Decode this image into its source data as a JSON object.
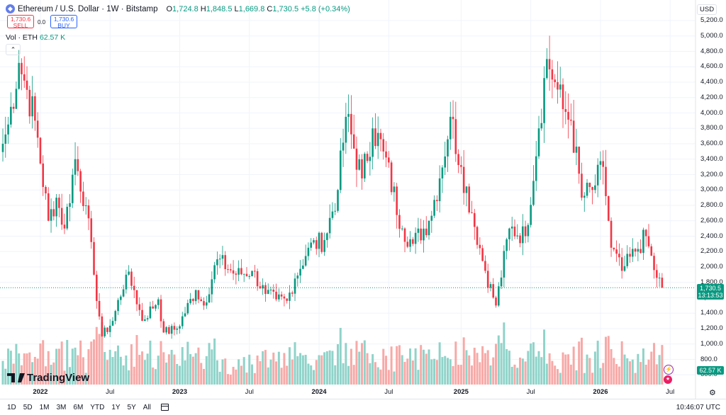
{
  "header": {
    "symbol_title": "Ethereum / U.S. Dollar · 1W · Bitstamp",
    "icon": "ethereum-icon",
    "open_label": "O",
    "open": "1,724.8",
    "high_label": "H",
    "high": "1,848.5",
    "low_label": "L",
    "low": "1,669.8",
    "close_label": "C",
    "close": "1,730.5",
    "change": "+5.8 (+0.34%)"
  },
  "trade": {
    "sell_price": "1,730.6",
    "sell_label": "SELL",
    "spread": "0.0",
    "buy_price": "1,730.6",
    "buy_label": "BUY"
  },
  "volume_legend": {
    "label": "Vol · ETH",
    "value": "62.57 K"
  },
  "axis": {
    "currency": "USD",
    "y_ticks": [
      "5,200.0",
      "5,000.0",
      "4,800.0",
      "4,600.0",
      "4,400.0",
      "4,200.0",
      "4,000.0",
      "3,800.0",
      "3,600.0",
      "3,400.0",
      "3,200.0",
      "3,000.0",
      "2,800.0",
      "2,600.0",
      "2,400.0",
      "2,200.0",
      "2,000.0",
      "1,800.0",
      "1,600.0",
      "1,400.0",
      "1,200.0",
      "1,000.0",
      "800.0",
      "600.0"
    ],
    "x_ticks": [
      "2022",
      "Jul",
      "2023",
      "Jul",
      "2024",
      "Jul",
      "2025",
      "Jul",
      "2026",
      "Jul"
    ]
  },
  "price_tag": {
    "price": "1,730.5",
    "countdown": "13:13:53"
  },
  "volume_tag": "62.57 K",
  "logo_text": "TradingView",
  "bottom": {
    "ranges": [
      "1D",
      "5D",
      "1M",
      "3M",
      "6M",
      "YTD",
      "1Y",
      "5Y",
      "All"
    ],
    "time": "10:46:07 UTC"
  },
  "colors": {
    "up": "#089981",
    "down": "#f23645",
    "vol_up": "#8fd3c9",
    "vol_down": "#f7a9a7"
  },
  "chart_data": {
    "type": "candlestick",
    "interval": "1W",
    "ylim": [
      550,
      5300
    ],
    "x_start": "2021-09-27",
    "anchors": [
      {
        "date": "2021-09-27",
        "close": 3600
      },
      {
        "date": "2021-10-11",
        "close": 3850
      },
      {
        "date": "2021-11-08",
        "close": 4650
      },
      {
        "date": "2021-11-29",
        "close": 4300
      },
      {
        "date": "2021-12-20",
        "close": 3900
      },
      {
        "date": "2022-01-24",
        "close": 2600
      },
      {
        "date": "2022-02-14",
        "close": 2900
      },
      {
        "date": "2022-03-07",
        "close": 2500
      },
      {
        "date": "2022-04-04",
        "close": 3400
      },
      {
        "date": "2022-05-02",
        "close": 2800
      },
      {
        "date": "2022-05-23",
        "close": 1900
      },
      {
        "date": "2022-06-13",
        "close": 1100
      },
      {
        "date": "2022-07-11",
        "close": 1300
      },
      {
        "date": "2022-08-15",
        "close": 1900
      },
      {
        "date": "2022-09-05",
        "close": 1700
      },
      {
        "date": "2022-09-26",
        "close": 1300
      },
      {
        "date": "2022-11-07",
        "close": 1580
      },
      {
        "date": "2022-11-21",
        "close": 1150
      },
      {
        "date": "2022-12-26",
        "close": 1200
      },
      {
        "date": "2023-02-13",
        "close": 1700
      },
      {
        "date": "2023-03-06",
        "close": 1500
      },
      {
        "date": "2023-04-10",
        "close": 2100
      },
      {
        "date": "2023-05-29",
        "close": 1900
      },
      {
        "date": "2023-07-10",
        "close": 1950
      },
      {
        "date": "2023-08-14",
        "close": 1650
      },
      {
        "date": "2023-09-11",
        "close": 1580
      },
      {
        "date": "2023-10-09",
        "close": 1560
      },
      {
        "date": "2023-10-30",
        "close": 1850
      },
      {
        "date": "2023-12-04",
        "close": 2250
      },
      {
        "date": "2024-01-15",
        "close": 2350
      },
      {
        "date": "2024-02-19",
        "close": 3000
      },
      {
        "date": "2024-03-11",
        "close": 3950
      },
      {
        "date": "2024-04-22",
        "close": 3150
      },
      {
        "date": "2024-05-20",
        "close": 3800
      },
      {
        "date": "2024-06-17",
        "close": 3500
      },
      {
        "date": "2024-08-05",
        "close": 2500
      },
      {
        "date": "2024-09-02",
        "close": 2300
      },
      {
        "date": "2024-10-14",
        "close": 2600
      },
      {
        "date": "2024-11-11",
        "close": 3150
      },
      {
        "date": "2024-12-09",
        "close": 3950
      },
      {
        "date": "2025-01-06",
        "close": 3300
      },
      {
        "date": "2025-02-03",
        "close": 2700
      },
      {
        "date": "2025-03-10",
        "close": 1950
      },
      {
        "date": "2025-04-07",
        "close": 1500
      },
      {
        "date": "2025-05-12",
        "close": 2500
      },
      {
        "date": "2025-06-23",
        "close": 2400
      },
      {
        "date": "2025-07-28",
        "close": 3800
      },
      {
        "date": "2025-08-18",
        "close": 4700
      },
      {
        "date": "2025-09-08",
        "close": 4400
      },
      {
        "date": "2025-09-29",
        "close": 4050
      },
      {
        "date": "2025-10-20",
        "close": 3900
      },
      {
        "date": "2025-11-17",
        "close": 2900
      },
      {
        "date": "2025-12-15",
        "close": 3000
      },
      {
        "date": "2026-01-12",
        "close": 3300
      },
      {
        "date": "2026-02-02",
        "close": 2250
      },
      {
        "date": "2026-03-02",
        "close": 1950
      },
      {
        "date": "2026-04-06",
        "close": 2200
      },
      {
        "date": "2026-05-04",
        "close": 2400
      },
      {
        "date": "2026-05-25",
        "close": 1960
      },
      {
        "date": "2026-06-15",
        "close": 1730
      }
    ],
    "last_price": 1730.5
  }
}
